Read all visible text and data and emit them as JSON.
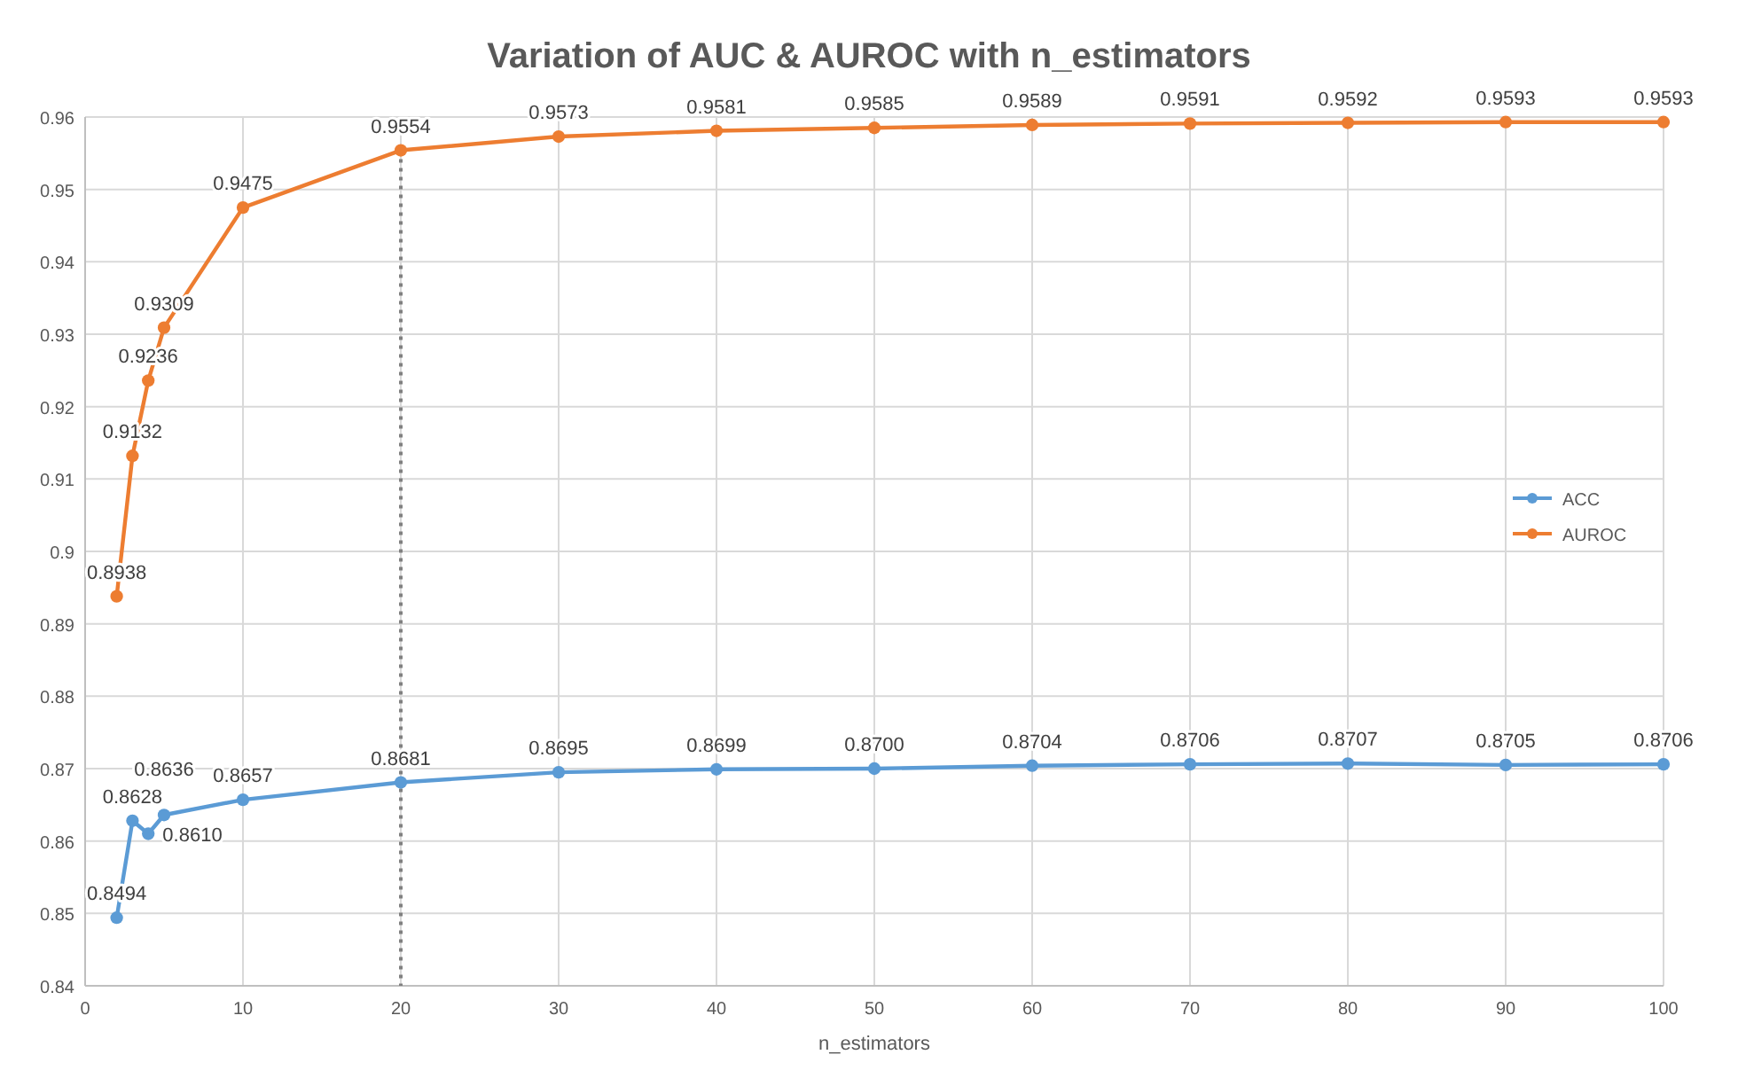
{
  "chart_data": {
    "type": "line",
    "title": "Variation of AUC & AUROC with n_estimators",
    "xlabel": "n_estimators",
    "x": [
      2,
      3,
      4,
      5,
      10,
      20,
      30,
      40,
      50,
      60,
      70,
      80,
      90,
      100
    ],
    "series": [
      {
        "name": "ACC",
        "color": "#5b9bd5",
        "values": [
          0.8494,
          0.8628,
          0.861,
          0.8636,
          0.8657,
          0.8681,
          0.8695,
          0.8699,
          0.87,
          0.8704,
          0.8706,
          0.8707,
          0.8705,
          0.8706
        ],
        "value_labels": [
          "0.8494",
          "0.8628",
          "0.8610",
          "0.8636",
          "0.8657",
          "0.8681",
          "0.8695",
          "0.8699",
          "0.8700",
          "0.8704",
          "0.8706",
          "0.8707",
          "0.8705",
          "0.8706"
        ]
      },
      {
        "name": "AUROC",
        "color": "#ed7d31",
        "values": [
          0.8938,
          0.9132,
          0.9236,
          0.9309,
          0.9475,
          0.9554,
          0.9573,
          0.9581,
          0.9585,
          0.9589,
          0.9591,
          0.9592,
          0.9593,
          0.9593
        ],
        "value_labels": [
          "0.8938",
          "0.9132",
          "0.9236",
          "0.9309",
          "0.9475",
          "0.9554",
          "0.9573",
          "0.9581",
          "0.9585",
          "0.9589",
          "0.9591",
          "0.9592",
          "0.9593",
          "0.9593"
        ]
      }
    ],
    "xlim": [
      0,
      100
    ],
    "xticks": [
      0,
      10,
      20,
      30,
      40,
      50,
      60,
      70,
      80,
      90,
      100
    ],
    "ylim": [
      0.84,
      0.96
    ],
    "yticks": [
      0.84,
      0.85,
      0.86,
      0.87,
      0.88,
      0.89,
      0.9,
      0.91,
      0.92,
      0.93,
      0.94,
      0.95,
      0.96
    ],
    "ref_lines": [
      {
        "axis": "x",
        "value": 20,
        "color": "#808080",
        "line_style": "dotted"
      }
    ],
    "grid": true,
    "legend": "right",
    "marker": "circle",
    "line_style": "solid"
  }
}
